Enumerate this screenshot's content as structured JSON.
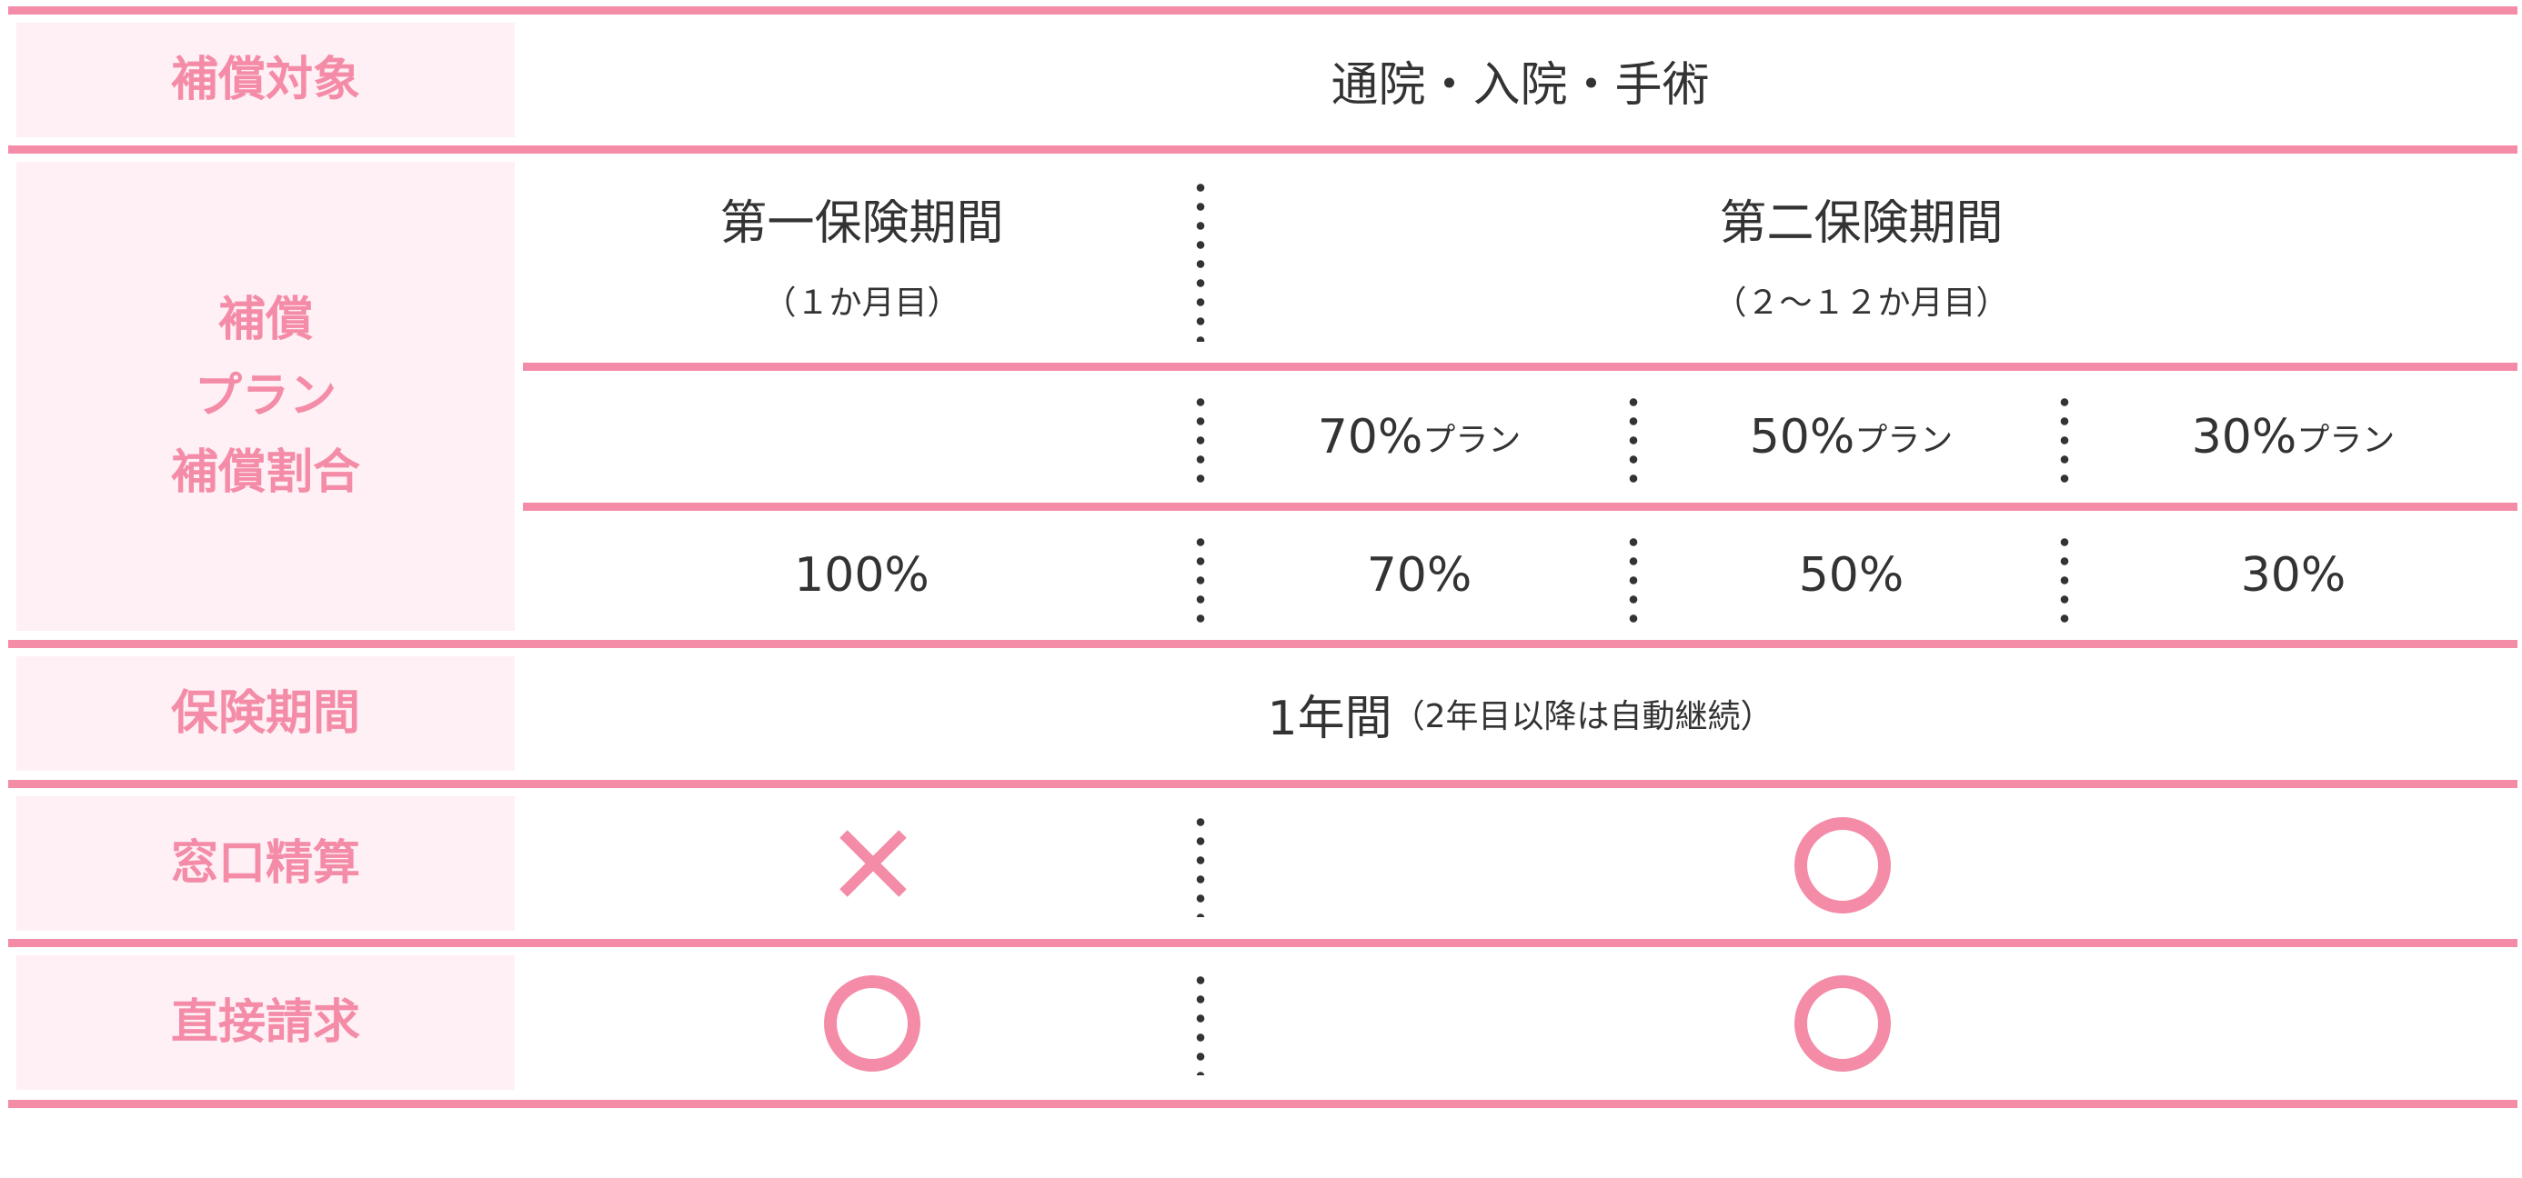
{
  "colors": {
    "accent": "#f48ca8",
    "label_bg": "#fff0f5",
    "text": "#333333"
  },
  "rows": {
    "coverage": {
      "label": "補償対象",
      "value": "通院・入院・手術"
    },
    "plan": {
      "label_lines": [
        "補償",
        "プラン",
        "補償割合"
      ],
      "first_period": {
        "title": "第一保険期間",
        "sub": "（１か月目）"
      },
      "second_period": {
        "title": "第二保険期間",
        "sub": "（２～１２か月目）"
      },
      "plans": [
        {
          "num": "70%",
          "suffix": "プラン"
        },
        {
          "num": "50%",
          "suffix": "プラン"
        },
        {
          "num": "30%",
          "suffix": "プラン"
        }
      ],
      "ratios": [
        "100%",
        "70%",
        "50%",
        "30%"
      ]
    },
    "period": {
      "label": "保険期間",
      "value": "1年間",
      "note": "（2年目以降は自動継続）"
    },
    "counter": {
      "label": "窓口精算",
      "first": "cross-icon",
      "second": "circle-icon"
    },
    "direct": {
      "label": "直接請求",
      "first": "circle-icon",
      "second": "circle-icon"
    }
  }
}
